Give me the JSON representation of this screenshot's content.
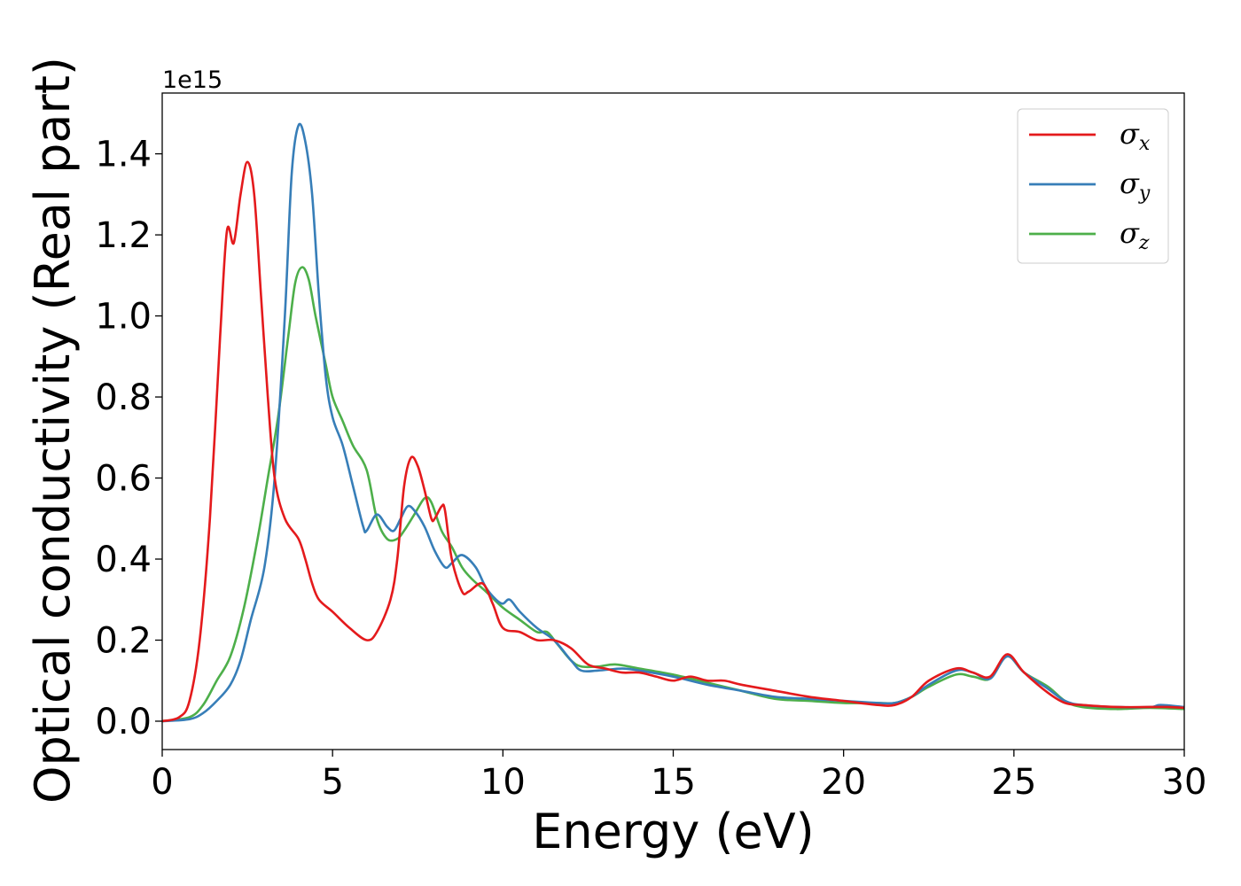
{
  "chart_data": {
    "type": "line",
    "xlabel": "Energy (eV)",
    "ylabel": "Optical conductivity (Real part)",
    "y_offset_label": "1e15",
    "xlim": [
      0,
      30
    ],
    "ylim": [
      -0.07,
      1.55
    ],
    "x_ticks": [
      0,
      5,
      10,
      15,
      20,
      25,
      30
    ],
    "x_tick_labels": [
      "0",
      "5",
      "10",
      "15",
      "20",
      "25",
      "30"
    ],
    "y_ticks": [
      0.0,
      0.2,
      0.4,
      0.6,
      0.8,
      1.0,
      1.2,
      1.4
    ],
    "y_tick_labels": [
      "0.0",
      "0.2",
      "0.4",
      "0.6",
      "0.8",
      "1.0",
      "1.2",
      "1.4"
    ],
    "grid": false,
    "legend_position": "top-right",
    "series": [
      {
        "name": "σ",
        "subscript": "x",
        "color": "#e41a1c",
        "points": [
          [
            0,
            0
          ],
          [
            0.5,
            0.01
          ],
          [
            0.8,
            0.05
          ],
          [
            1.1,
            0.2
          ],
          [
            1.4,
            0.5
          ],
          [
            1.7,
            0.95
          ],
          [
            1.9,
            1.21
          ],
          [
            2.1,
            1.18
          ],
          [
            2.3,
            1.3
          ],
          [
            2.5,
            1.38
          ],
          [
            2.7,
            1.3
          ],
          [
            2.9,
            1.05
          ],
          [
            3.1,
            0.8
          ],
          [
            3.3,
            0.6
          ],
          [
            3.6,
            0.5
          ],
          [
            4.0,
            0.45
          ],
          [
            4.2,
            0.4
          ],
          [
            4.4,
            0.34
          ],
          [
            4.6,
            0.3
          ],
          [
            5.0,
            0.27
          ],
          [
            5.5,
            0.23
          ],
          [
            6.0,
            0.2
          ],
          [
            6.3,
            0.22
          ],
          [
            6.7,
            0.3
          ],
          [
            6.9,
            0.4
          ],
          [
            7.1,
            0.58
          ],
          [
            7.3,
            0.65
          ],
          [
            7.5,
            0.63
          ],
          [
            7.7,
            0.57
          ],
          [
            7.9,
            0.5
          ],
          [
            8.0,
            0.5
          ],
          [
            8.2,
            0.53
          ],
          [
            8.3,
            0.52
          ],
          [
            8.5,
            0.4
          ],
          [
            8.8,
            0.32
          ],
          [
            9.0,
            0.32
          ],
          [
            9.4,
            0.34
          ],
          [
            9.7,
            0.29
          ],
          [
            10.0,
            0.23
          ],
          [
            10.5,
            0.22
          ],
          [
            11.0,
            0.2
          ],
          [
            11.5,
            0.2
          ],
          [
            12.0,
            0.18
          ],
          [
            12.5,
            0.14
          ],
          [
            13.0,
            0.13
          ],
          [
            13.5,
            0.12
          ],
          [
            14.0,
            0.12
          ],
          [
            14.5,
            0.11
          ],
          [
            15.0,
            0.1
          ],
          [
            15.5,
            0.11
          ],
          [
            16.0,
            0.1
          ],
          [
            16.5,
            0.1
          ],
          [
            17.0,
            0.09
          ],
          [
            18.0,
            0.075
          ],
          [
            19.0,
            0.06
          ],
          [
            20.0,
            0.05
          ],
          [
            21.0,
            0.04
          ],
          [
            21.5,
            0.04
          ],
          [
            22.0,
            0.06
          ],
          [
            22.5,
            0.1
          ],
          [
            23.3,
            0.13
          ],
          [
            23.8,
            0.12
          ],
          [
            24.3,
            0.11
          ],
          [
            24.8,
            0.165
          ],
          [
            25.3,
            0.12
          ],
          [
            26.0,
            0.07
          ],
          [
            26.5,
            0.045
          ],
          [
            27.0,
            0.04
          ],
          [
            28.0,
            0.035
          ],
          [
            29.0,
            0.035
          ],
          [
            29.5,
            0.035
          ],
          [
            30.0,
            0.033
          ]
        ]
      },
      {
        "name": "σ",
        "subscript": "y",
        "color": "#377eb8",
        "points": [
          [
            0,
            0
          ],
          [
            0.8,
            0.005
          ],
          [
            1.2,
            0.02
          ],
          [
            1.6,
            0.05
          ],
          [
            2.0,
            0.09
          ],
          [
            2.3,
            0.15
          ],
          [
            2.6,
            0.25
          ],
          [
            3.0,
            0.38
          ],
          [
            3.3,
            0.6
          ],
          [
            3.6,
            1.0
          ],
          [
            3.8,
            1.35
          ],
          [
            4.0,
            1.47
          ],
          [
            4.2,
            1.43
          ],
          [
            4.4,
            1.3
          ],
          [
            4.6,
            1.05
          ],
          [
            4.8,
            0.85
          ],
          [
            5.0,
            0.75
          ],
          [
            5.3,
            0.68
          ],
          [
            5.6,
            0.58
          ],
          [
            5.9,
            0.48
          ],
          [
            6.0,
            0.47
          ],
          [
            6.3,
            0.51
          ],
          [
            6.6,
            0.48
          ],
          [
            6.8,
            0.47
          ],
          [
            7.0,
            0.5
          ],
          [
            7.2,
            0.53
          ],
          [
            7.4,
            0.52
          ],
          [
            7.7,
            0.48
          ],
          [
            8.0,
            0.42
          ],
          [
            8.3,
            0.38
          ],
          [
            8.5,
            0.39
          ],
          [
            8.8,
            0.41
          ],
          [
            9.2,
            0.38
          ],
          [
            9.5,
            0.33
          ],
          [
            9.8,
            0.3
          ],
          [
            10.0,
            0.29
          ],
          [
            10.2,
            0.3
          ],
          [
            10.5,
            0.27
          ],
          [
            11.0,
            0.23
          ],
          [
            11.5,
            0.2
          ],
          [
            12.0,
            0.15
          ],
          [
            12.3,
            0.125
          ],
          [
            12.8,
            0.125
          ],
          [
            13.5,
            0.13
          ],
          [
            14.0,
            0.125
          ],
          [
            15.0,
            0.11
          ],
          [
            16.0,
            0.09
          ],
          [
            17.0,
            0.075
          ],
          [
            18.0,
            0.06
          ],
          [
            19.0,
            0.055
          ],
          [
            20.0,
            0.05
          ],
          [
            21.0,
            0.045
          ],
          [
            21.5,
            0.045
          ],
          [
            22.0,
            0.06
          ],
          [
            22.5,
            0.09
          ],
          [
            23.3,
            0.125
          ],
          [
            23.8,
            0.12
          ],
          [
            24.3,
            0.105
          ],
          [
            24.8,
            0.16
          ],
          [
            25.3,
            0.12
          ],
          [
            26.0,
            0.08
          ],
          [
            26.5,
            0.05
          ],
          [
            27.0,
            0.04
          ],
          [
            28.0,
            0.035
          ],
          [
            29.0,
            0.035
          ],
          [
            29.3,
            0.04
          ],
          [
            30.0,
            0.035
          ]
        ]
      },
      {
        "name": "σ",
        "subscript": "z",
        "color": "#4daf4a",
        "points": [
          [
            0,
            0
          ],
          [
            0.8,
            0.01
          ],
          [
            1.2,
            0.04
          ],
          [
            1.6,
            0.1
          ],
          [
            2.0,
            0.16
          ],
          [
            2.4,
            0.28
          ],
          [
            2.8,
            0.45
          ],
          [
            3.1,
            0.6
          ],
          [
            3.4,
            0.75
          ],
          [
            3.7,
            0.95
          ],
          [
            3.9,
            1.08
          ],
          [
            4.1,
            1.12
          ],
          [
            4.3,
            1.09
          ],
          [
            4.5,
            1.0
          ],
          [
            4.8,
            0.88
          ],
          [
            5.0,
            0.8
          ],
          [
            5.3,
            0.74
          ],
          [
            5.6,
            0.68
          ],
          [
            6.0,
            0.62
          ],
          [
            6.3,
            0.5
          ],
          [
            6.6,
            0.45
          ],
          [
            6.9,
            0.45
          ],
          [
            7.1,
            0.47
          ],
          [
            7.4,
            0.51
          ],
          [
            7.7,
            0.55
          ],
          [
            7.9,
            0.54
          ],
          [
            8.2,
            0.47
          ],
          [
            8.5,
            0.43
          ],
          [
            8.8,
            0.38
          ],
          [
            9.1,
            0.35
          ],
          [
            9.5,
            0.32
          ],
          [
            10.0,
            0.28
          ],
          [
            10.5,
            0.25
          ],
          [
            11.0,
            0.22
          ],
          [
            11.3,
            0.22
          ],
          [
            11.6,
            0.19
          ],
          [
            12.0,
            0.15
          ],
          [
            12.3,
            0.135
          ],
          [
            12.8,
            0.135
          ],
          [
            13.3,
            0.14
          ],
          [
            14.0,
            0.13
          ],
          [
            15.0,
            0.115
          ],
          [
            16.0,
            0.095
          ],
          [
            17.0,
            0.075
          ],
          [
            18.0,
            0.055
          ],
          [
            19.0,
            0.05
          ],
          [
            20.0,
            0.045
          ],
          [
            21.0,
            0.045
          ],
          [
            21.5,
            0.045
          ],
          [
            22.0,
            0.06
          ],
          [
            22.5,
            0.085
          ],
          [
            23.3,
            0.115
          ],
          [
            23.8,
            0.11
          ],
          [
            24.3,
            0.105
          ],
          [
            24.8,
            0.16
          ],
          [
            25.3,
            0.12
          ],
          [
            26.0,
            0.085
          ],
          [
            26.5,
            0.05
          ],
          [
            27.0,
            0.035
          ],
          [
            28.0,
            0.03
          ],
          [
            29.0,
            0.033
          ],
          [
            30.0,
            0.03
          ]
        ]
      }
    ]
  }
}
